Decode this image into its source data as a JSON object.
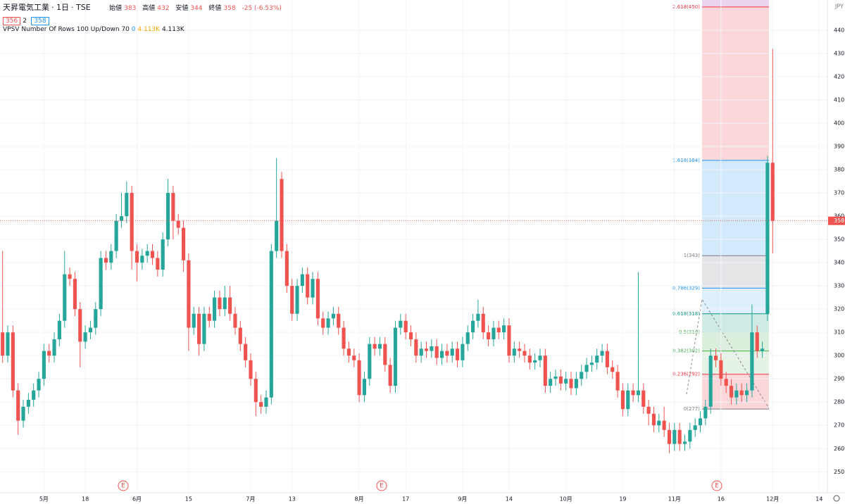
{
  "chart_data": {
    "type": "candlestick",
    "header": {
      "symbol": "天昇電気工業",
      "interval": "1日",
      "exchange": "TSE",
      "ohlc_labels": [
        "始値",
        "高値",
        "安値",
        "終値"
      ],
      "ohlc": [
        383,
        432,
        344,
        358
      ],
      "change": "-25 (-6.53%)",
      "bid": "356",
      "spread": "2",
      "ask": "358"
    },
    "indicator": {
      "name": "VPSV Number Of Rows 100 Up/Down 70",
      "values": [
        "0",
        "4.113K",
        "4.113K"
      ]
    },
    "currency": "JPY",
    "last_price": 358,
    "events": [
      "E",
      "E",
      "E"
    ],
    "up_color": "#26a69a",
    "down_color": "#ef5350",
    "ylim": [
      241,
      453
    ],
    "yticks": [
      250,
      260,
      270,
      280,
      290,
      300,
      310,
      320,
      330,
      340,
      350,
      360,
      370,
      380,
      390,
      400,
      410,
      420,
      430,
      440
    ],
    "categories": [
      null,
      null,
      null,
      null,
      null,
      null,
      null,
      null,
      "5月",
      null,
      null,
      null,
      null,
      null,
      null,
      null,
      "18",
      null,
      null,
      null,
      null,
      null,
      null,
      null,
      null,
      null,
      "6月",
      null,
      null,
      null,
      null,
      null,
      null,
      null,
      null,
      null,
      "15",
      null,
      null,
      null,
      null,
      null,
      null,
      null,
      null,
      null,
      null,
      null,
      "7月",
      null,
      null,
      null,
      null,
      null,
      null,
      null,
      "13",
      null,
      null,
      null,
      null,
      null,
      null,
      null,
      null,
      null,
      null,
      null,
      null,
      "8月",
      null,
      null,
      null,
      null,
      null,
      null,
      null,
      null,
      "17",
      null,
      null,
      null,
      null,
      null,
      null,
      null,
      null,
      null,
      null,
      "9月",
      null,
      null,
      null,
      null,
      null,
      null,
      null,
      null,
      "14",
      null,
      null,
      null,
      null,
      null,
      null,
      null,
      null,
      null,
      null,
      "10月",
      null,
      null,
      null,
      null,
      null,
      null,
      null,
      null,
      null,
      null,
      "19",
      null,
      null,
      null,
      null,
      null,
      null,
      null,
      null,
      null,
      "11月",
      null,
      null,
      null,
      null,
      null,
      null,
      null,
      null,
      "16",
      null,
      null,
      null,
      null,
      null,
      null,
      null,
      null,
      null,
      "12月",
      null,
      null,
      null,
      null,
      null,
      null,
      null,
      null,
      "14"
    ],
    "ohlc": [
      [
        310,
        345,
        297,
        300
      ],
      [
        300,
        313,
        297,
        310
      ],
      [
        310,
        313,
        282,
        285
      ],
      [
        285,
        288,
        266,
        272
      ],
      [
        272,
        281,
        269,
        278
      ],
      [
        278,
        284,
        275,
        281
      ],
      [
        281,
        288,
        278,
        285
      ],
      [
        285,
        293,
        282,
        290
      ],
      [
        290,
        305,
        287,
        302
      ],
      [
        302,
        305,
        297,
        300
      ],
      [
        300,
        310,
        297,
        307
      ],
      [
        307,
        318,
        304,
        315
      ],
      [
        315,
        345,
        312,
        335
      ],
      [
        335,
        338,
        330,
        333
      ],
      [
        333,
        336,
        317,
        320
      ],
      [
        320,
        323,
        295,
        306
      ],
      [
        306,
        313,
        303,
        310
      ],
      [
        310,
        315,
        307,
        312
      ],
      [
        312,
        323,
        309,
        320
      ],
      [
        320,
        345,
        317,
        342
      ],
      [
        342,
        345,
        337,
        340
      ],
      [
        340,
        348,
        337,
        345
      ],
      [
        345,
        361,
        342,
        358
      ],
      [
        358,
        370,
        355,
        360
      ],
      [
        360,
        375,
        357,
        370
      ],
      [
        370,
        373,
        337,
        345
      ],
      [
        345,
        348,
        332,
        340
      ],
      [
        340,
        346,
        337,
        343
      ],
      [
        343,
        348,
        340,
        345
      ],
      [
        345,
        348,
        339,
        342
      ],
      [
        342,
        345,
        334,
        337
      ],
      [
        337,
        353,
        334,
        350
      ],
      [
        350,
        376,
        347,
        370
      ],
      [
        370,
        373,
        350,
        358
      ],
      [
        358,
        361,
        352,
        355
      ],
      [
        355,
        358,
        336,
        341
      ],
      [
        341,
        344,
        302,
        312
      ],
      [
        312,
        321,
        309,
        318
      ],
      [
        318,
        321,
        300,
        305
      ],
      [
        305,
        321,
        302,
        318
      ],
      [
        318,
        321,
        312,
        315
      ],
      [
        315,
        328,
        312,
        325
      ],
      [
        325,
        328,
        317,
        320
      ],
      [
        320,
        330,
        317,
        325
      ],
      [
        325,
        330,
        315,
        318
      ],
      [
        318,
        321,
        309,
        312
      ],
      [
        312,
        315,
        302,
        305
      ],
      [
        305,
        308,
        295,
        298
      ],
      [
        298,
        301,
        287,
        290
      ],
      [
        290,
        293,
        274,
        280
      ],
      [
        280,
        283,
        275,
        278
      ],
      [
        278,
        285,
        275,
        282
      ],
      [
        282,
        348,
        279,
        345
      ],
      [
        345,
        385,
        342,
        358
      ],
      [
        376,
        379,
        342,
        345
      ],
      [
        345,
        348,
        327,
        330
      ],
      [
        330,
        333,
        315,
        318
      ],
      [
        318,
        333,
        315,
        330
      ],
      [
        330,
        338,
        327,
        335
      ],
      [
        335,
        338,
        322,
        325
      ],
      [
        325,
        336,
        322,
        333
      ],
      [
        333,
        336,
        313,
        316
      ],
      [
        316,
        319,
        309,
        312
      ],
      [
        312,
        319,
        309,
        316
      ],
      [
        316,
        321,
        313,
        318
      ],
      [
        318,
        321,
        309,
        312
      ],
      [
        312,
        315,
        300,
        303
      ],
      [
        303,
        306,
        297,
        300
      ],
      [
        300,
        303,
        295,
        298
      ],
      [
        298,
        301,
        280,
        283
      ],
      [
        283,
        293,
        280,
        290
      ],
      [
        290,
        308,
        287,
        305
      ],
      [
        305,
        308,
        300,
        303
      ],
      [
        303,
        308,
        300,
        305
      ],
      [
        305,
        308,
        293,
        296
      ],
      [
        296,
        299,
        284,
        287
      ],
      [
        287,
        315,
        284,
        312
      ],
      [
        312,
        318,
        309,
        315
      ],
      [
        315,
        318,
        307,
        310
      ],
      [
        310,
        313,
        304,
        307
      ],
      [
        307,
        310,
        297,
        300
      ],
      [
        300,
        306,
        297,
        303
      ],
      [
        303,
        306,
        299,
        302
      ],
      [
        302,
        307,
        299,
        304
      ],
      [
        304,
        307,
        296,
        299
      ],
      [
        299,
        305,
        296,
        302
      ],
      [
        302,
        305,
        297,
        300
      ],
      [
        300,
        306,
        297,
        303
      ],
      [
        303,
        306,
        295,
        298
      ],
      [
        298,
        308,
        295,
        305
      ],
      [
        305,
        313,
        302,
        310
      ],
      [
        310,
        318,
        307,
        315
      ],
      [
        315,
        324,
        312,
        318
      ],
      [
        318,
        321,
        307,
        310
      ],
      [
        310,
        313,
        304,
        307
      ],
      [
        307,
        315,
        304,
        312
      ],
      [
        312,
        315,
        307,
        310
      ],
      [
        310,
        316,
        307,
        313
      ],
      [
        313,
        316,
        297,
        300
      ],
      [
        300,
        306,
        297,
        303
      ],
      [
        303,
        306,
        299,
        302
      ],
      [
        302,
        305,
        297,
        300
      ],
      [
        300,
        303,
        294,
        297
      ],
      [
        297,
        301,
        294,
        298
      ],
      [
        298,
        303,
        295,
        300
      ],
      [
        300,
        303,
        284,
        287
      ],
      [
        287,
        293,
        284,
        290
      ],
      [
        290,
        294,
        287,
        291
      ],
      [
        291,
        294,
        285,
        288
      ],
      [
        288,
        293,
        285,
        290
      ],
      [
        290,
        293,
        283,
        286
      ],
      [
        286,
        293,
        283,
        290
      ],
      [
        290,
        296,
        287,
        293
      ],
      [
        293,
        299,
        290,
        296
      ],
      [
        296,
        300,
        293,
        297
      ],
      [
        297,
        303,
        294,
        300
      ],
      [
        300,
        305,
        297,
        302
      ],
      [
        302,
        305,
        292,
        295
      ],
      [
        295,
        298,
        290,
        293
      ],
      [
        293,
        296,
        282,
        285
      ],
      [
        285,
        288,
        274,
        277
      ],
      [
        277,
        288,
        274,
        285
      ],
      [
        285,
        288,
        280,
        283
      ],
      [
        283,
        336,
        280,
        285
      ],
      [
        285,
        288,
        275,
        278
      ],
      [
        278,
        281,
        270,
        275
      ],
      [
        275,
        278,
        267,
        270
      ],
      [
        270,
        275,
        267,
        272
      ],
      [
        272,
        278,
        265,
        268
      ],
      [
        268,
        271,
        258,
        262
      ],
      [
        262,
        271,
        259,
        268
      ],
      [
        268,
        271,
        259,
        262
      ],
      [
        262,
        266,
        259,
        263
      ],
      [
        263,
        271,
        260,
        268
      ],
      [
        268,
        273,
        265,
        270
      ],
      [
        270,
        276,
        267,
        273
      ],
      [
        273,
        281,
        270,
        278
      ],
      [
        278,
        303,
        275,
        300
      ],
      [
        300,
        303,
        295,
        298
      ],
      [
        298,
        301,
        287,
        290
      ],
      [
        290,
        293,
        284,
        287
      ],
      [
        287,
        290,
        279,
        282
      ],
      [
        282,
        288,
        279,
        285
      ],
      [
        285,
        288,
        280,
        283
      ],
      [
        283,
        288,
        280,
        285
      ],
      [
        285,
        322,
        282,
        310
      ],
      [
        310,
        313,
        299,
        302
      ],
      [
        302,
        306,
        299,
        303
      ],
      [
        318,
        386,
        315,
        383
      ],
      [
        383,
        432,
        344,
        358
      ],
      null,
      null,
      null,
      null,
      null,
      null,
      null,
      null,
      null
    ],
    "fib": {
      "levels": [
        {
          "value": 450,
          "label": "2.618(450)"
        },
        {
          "value": 384,
          "label": "1.618(384)"
        },
        {
          "value": 343,
          "label": "1(343)"
        },
        {
          "value": 329,
          "label": "0.786(329)"
        },
        {
          "value": 318,
          "label": "0.618(318)"
        },
        {
          "value": 310,
          "label": "0.5(310)"
        },
        {
          "value": 302,
          "label": "0.382(302)"
        },
        {
          "value": 292,
          "label": "0.236(292)"
        },
        {
          "value": 277,
          "label": "0(277)"
        }
      ],
      "label_colors": [
        "#f23645",
        "#2196f3",
        "#787b86",
        "#2196f3",
        "#089981",
        "#4caf50",
        "#4caf50",
        "#f23645",
        "#787b86"
      ],
      "zone_colors": [
        "rgba(242,54,69,0.2)",
        "rgba(33,150,243,0.2)",
        "rgba(120,123,134,0.2)",
        "rgba(33,150,243,0.15)",
        "rgba(8,153,129,0.2)",
        "rgba(76,175,80,0.2)",
        "rgba(76,175,80,0.15)",
        "rgba(242,54,69,0.2)"
      ]
    }
  }
}
